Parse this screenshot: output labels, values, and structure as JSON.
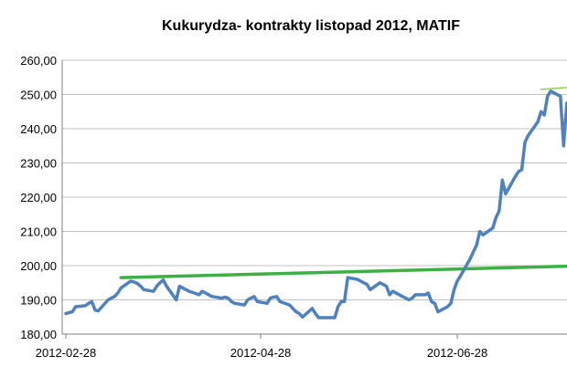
{
  "chart_data": {
    "type": "line",
    "title": "Kukurydza- kontrakty listopad 2012, MATIF",
    "xlabel": "",
    "ylabel": "",
    "ylim": [
      180,
      260
    ],
    "y_ticks": [
      "180,00",
      "190,00",
      "200,00",
      "210,00",
      "220,00",
      "230,00",
      "240,00",
      "250,00",
      "260,00"
    ],
    "x_ticks": [
      "2012-02-28",
      "2012-04-28",
      "2012-06-28"
    ],
    "grid": true,
    "legend": "none",
    "colors": {
      "price": "#4F81BD",
      "trend_main": "#3CB043",
      "trend_upper": "#92D050",
      "grid": "#C0C0C0",
      "axis": "#808080"
    },
    "series": [
      {
        "key": "price",
        "values": [
          [
            "2012-02-28",
            186.0
          ],
          [
            "2012-03-01",
            186.5
          ],
          [
            "2012-03-02",
            188.0
          ],
          [
            "2012-03-05",
            188.3
          ],
          [
            "2012-03-06",
            189.0
          ],
          [
            "2012-03-07",
            189.5
          ],
          [
            "2012-03-08",
            187.0
          ],
          [
            "2012-03-09",
            186.8
          ],
          [
            "2012-03-12",
            190.0
          ],
          [
            "2012-03-13",
            190.5
          ],
          [
            "2012-03-14",
            191.0
          ],
          [
            "2012-03-15",
            192.0
          ],
          [
            "2012-03-16",
            193.5
          ],
          [
            "2012-03-19",
            195.5
          ],
          [
            "2012-03-20",
            195.2
          ],
          [
            "2012-03-21",
            194.8
          ],
          [
            "2012-03-22",
            194.0
          ],
          [
            "2012-03-23",
            193.0
          ],
          [
            "2012-03-26",
            192.5
          ],
          [
            "2012-03-27",
            194.0
          ],
          [
            "2012-03-28",
            195.0
          ],
          [
            "2012-03-29",
            195.8
          ],
          [
            "2012-03-30",
            194.0
          ],
          [
            "2012-04-02",
            190.0
          ],
          [
            "2012-04-03",
            194.0
          ],
          [
            "2012-04-04",
            193.5
          ],
          [
            "2012-04-05",
            193.0
          ],
          [
            "2012-04-06",
            192.5
          ],
          [
            "2012-04-09",
            191.5
          ],
          [
            "2012-04-10",
            192.5
          ],
          [
            "2012-04-11",
            192.0
          ],
          [
            "2012-04-12",
            191.5
          ],
          [
            "2012-04-13",
            191.0
          ],
          [
            "2012-04-16",
            190.5
          ],
          [
            "2012-04-17",
            190.8
          ],
          [
            "2012-04-18",
            190.5
          ],
          [
            "2012-04-19",
            189.5
          ],
          [
            "2012-04-20",
            189.0
          ],
          [
            "2012-04-23",
            188.5
          ],
          [
            "2012-04-24",
            190.0
          ],
          [
            "2012-04-25",
            190.5
          ],
          [
            "2012-04-26",
            191.0
          ],
          [
            "2012-04-27",
            189.5
          ],
          [
            "2012-04-30",
            189.0
          ],
          [
            "2012-05-01",
            190.5
          ],
          [
            "2012-05-02",
            190.8
          ],
          [
            "2012-05-03",
            191.0
          ],
          [
            "2012-05-04",
            189.5
          ],
          [
            "2012-05-07",
            188.5
          ],
          [
            "2012-05-08",
            187.5
          ],
          [
            "2012-05-09",
            186.5
          ],
          [
            "2012-05-10",
            186.0
          ],
          [
            "2012-05-11",
            185.0
          ],
          [
            "2012-05-14",
            187.5
          ],
          [
            "2012-05-15",
            186.0
          ],
          [
            "2012-05-16",
            184.8
          ],
          [
            "2012-05-17",
            184.8
          ],
          [
            "2012-05-18",
            184.8
          ],
          [
            "2012-05-21",
            184.8
          ],
          [
            "2012-05-22",
            188.0
          ],
          [
            "2012-05-23",
            189.5
          ],
          [
            "2012-05-24",
            189.5
          ],
          [
            "2012-05-25",
            196.5
          ],
          [
            "2012-05-28",
            196.0
          ],
          [
            "2012-05-29",
            195.5
          ],
          [
            "2012-05-30",
            195.0
          ],
          [
            "2012-05-31",
            194.5
          ],
          [
            "2012-06-01",
            193.0
          ],
          [
            "2012-06-04",
            195.0
          ],
          [
            "2012-06-05",
            194.5
          ],
          [
            "2012-06-06",
            194.0
          ],
          [
            "2012-06-07",
            191.5
          ],
          [
            "2012-06-08",
            192.5
          ],
          [
            "2012-06-11",
            191.0
          ],
          [
            "2012-06-12",
            190.5
          ],
          [
            "2012-06-13",
            190.0
          ],
          [
            "2012-06-14",
            190.5
          ],
          [
            "2012-06-15",
            191.5
          ],
          [
            "2012-06-18",
            191.5
          ],
          [
            "2012-06-19",
            192.0
          ],
          [
            "2012-06-20",
            189.5
          ],
          [
            "2012-06-21",
            189.0
          ],
          [
            "2012-06-22",
            186.5
          ],
          [
            "2012-06-25",
            188.0
          ],
          [
            "2012-06-26",
            189.0
          ],
          [
            "2012-06-27",
            193.0
          ],
          [
            "2012-06-28",
            195.5
          ],
          [
            "2012-06-29",
            197.0
          ],
          [
            "2012-07-02",
            202.0
          ],
          [
            "2012-07-03",
            204.0
          ],
          [
            "2012-07-04",
            206.0
          ],
          [
            "2012-07-05",
            210.0
          ],
          [
            "2012-07-06",
            209.0
          ],
          [
            "2012-07-09",
            211.0
          ],
          [
            "2012-07-10",
            214.0
          ],
          [
            "2012-07-11",
            216.0
          ],
          [
            "2012-07-12",
            225.0
          ],
          [
            "2012-07-13",
            221.0
          ],
          [
            "2012-07-16",
            226.0
          ],
          [
            "2012-07-17",
            227.5
          ],
          [
            "2012-07-18",
            228.0
          ],
          [
            "2012-07-19",
            236.0
          ],
          [
            "2012-07-20",
            238.0
          ],
          [
            "2012-07-23",
            242.0
          ],
          [
            "2012-07-24",
            245.0
          ],
          [
            "2012-07-25",
            244.0
          ],
          [
            "2012-07-26",
            249.5
          ],
          [
            "2012-07-27",
            251.0
          ],
          [
            "2012-07-30",
            249.5
          ],
          [
            "2012-07-31",
            235.0
          ],
          [
            "2012-08-01",
            247.5
          ],
          [
            "2012-08-02",
            245.5
          ],
          [
            "2012-08-03",
            247.0
          ],
          [
            "2012-08-06",
            250.0
          ],
          [
            "2012-08-07",
            252.0
          ],
          [
            "2012-08-08",
            249.5
          ]
        ]
      },
      {
        "key": "trend_main",
        "values": [
          [
            "2012-03-16",
            196.5
          ],
          [
            "2012-08-08",
            200.0
          ]
        ]
      },
      {
        "key": "trend_upper",
        "values": [
          [
            "2012-07-24",
            251.5
          ],
          [
            "2012-08-08",
            252.5
          ]
        ]
      }
    ]
  }
}
